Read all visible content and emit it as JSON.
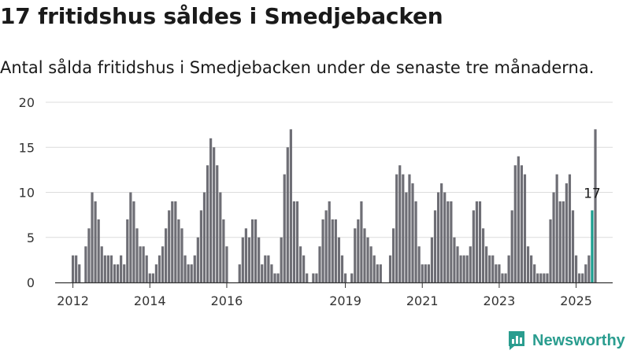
{
  "title": "17 fritidshus såldes i Smedjebacken",
  "subtitle": "Antal sålda fritidshus i Smedjebacken under de senaste tre månaderna.",
  "brand": {
    "name": "Newsworthy",
    "icon": "bar-chart-logo-icon"
  },
  "colors": {
    "bar": "#6e6e75",
    "highlight": "#1a9e8f",
    "grid": "#dcdcdc",
    "axis": "#333333",
    "brand": "#2a9d8f"
  },
  "chart_data": {
    "type": "bar",
    "title": "17 fritidshus såldes i Smedjebacken",
    "xlabel": "",
    "ylabel": "",
    "ylim": [
      0,
      20
    ],
    "yticks": [
      0,
      5,
      10,
      15,
      20
    ],
    "xticks": [
      {
        "label": "2012",
        "index": 0
      },
      {
        "label": "2014",
        "index": 24
      },
      {
        "label": "2016",
        "index": 48
      },
      {
        "label": "2019",
        "index": 85
      },
      {
        "label": "2021",
        "index": 109
      },
      {
        "label": "2023",
        "index": 133
      },
      {
        "label": "2025",
        "index": 157
      }
    ],
    "highlight_label": "17",
    "values": [
      3,
      3,
      2,
      0,
      4,
      6,
      10,
      9,
      7,
      4,
      3,
      3,
      3,
      2,
      2,
      3,
      2,
      7,
      10,
      9,
      6,
      4,
      4,
      3,
      1,
      1,
      2,
      3,
      4,
      6,
      8,
      9,
      9,
      7,
      6,
      3,
      2,
      2,
      3,
      5,
      8,
      10,
      13,
      16,
      15,
      13,
      10,
      7,
      4,
      0,
      0,
      0,
      2,
      5,
      6,
      5,
      7,
      7,
      5,
      2,
      3,
      3,
      2,
      1,
      1,
      5,
      12,
      15,
      17,
      9,
      9,
      4,
      3,
      1,
      0,
      1,
      1,
      4,
      7,
      8,
      9,
      7,
      7,
      5,
      3,
      1,
      0,
      1,
      6,
      7,
      9,
      6,
      5,
      4,
      3,
      2,
      2,
      0,
      0,
      3,
      6,
      12,
      13,
      12,
      10,
      12,
      11,
      9,
      4,
      2,
      2,
      2,
      5,
      8,
      10,
      11,
      10,
      9,
      9,
      5,
      4,
      3,
      3,
      3,
      4,
      8,
      9,
      9,
      6,
      4,
      3,
      3,
      2,
      2,
      1,
      1,
      3,
      8,
      13,
      14,
      13,
      12,
      4,
      3,
      2,
      1,
      1,
      1,
      1,
      7,
      10,
      12,
      9,
      9,
      11,
      12,
      8,
      3,
      1,
      1,
      2,
      3,
      8,
      17
    ],
    "highlight_index": 162
  }
}
